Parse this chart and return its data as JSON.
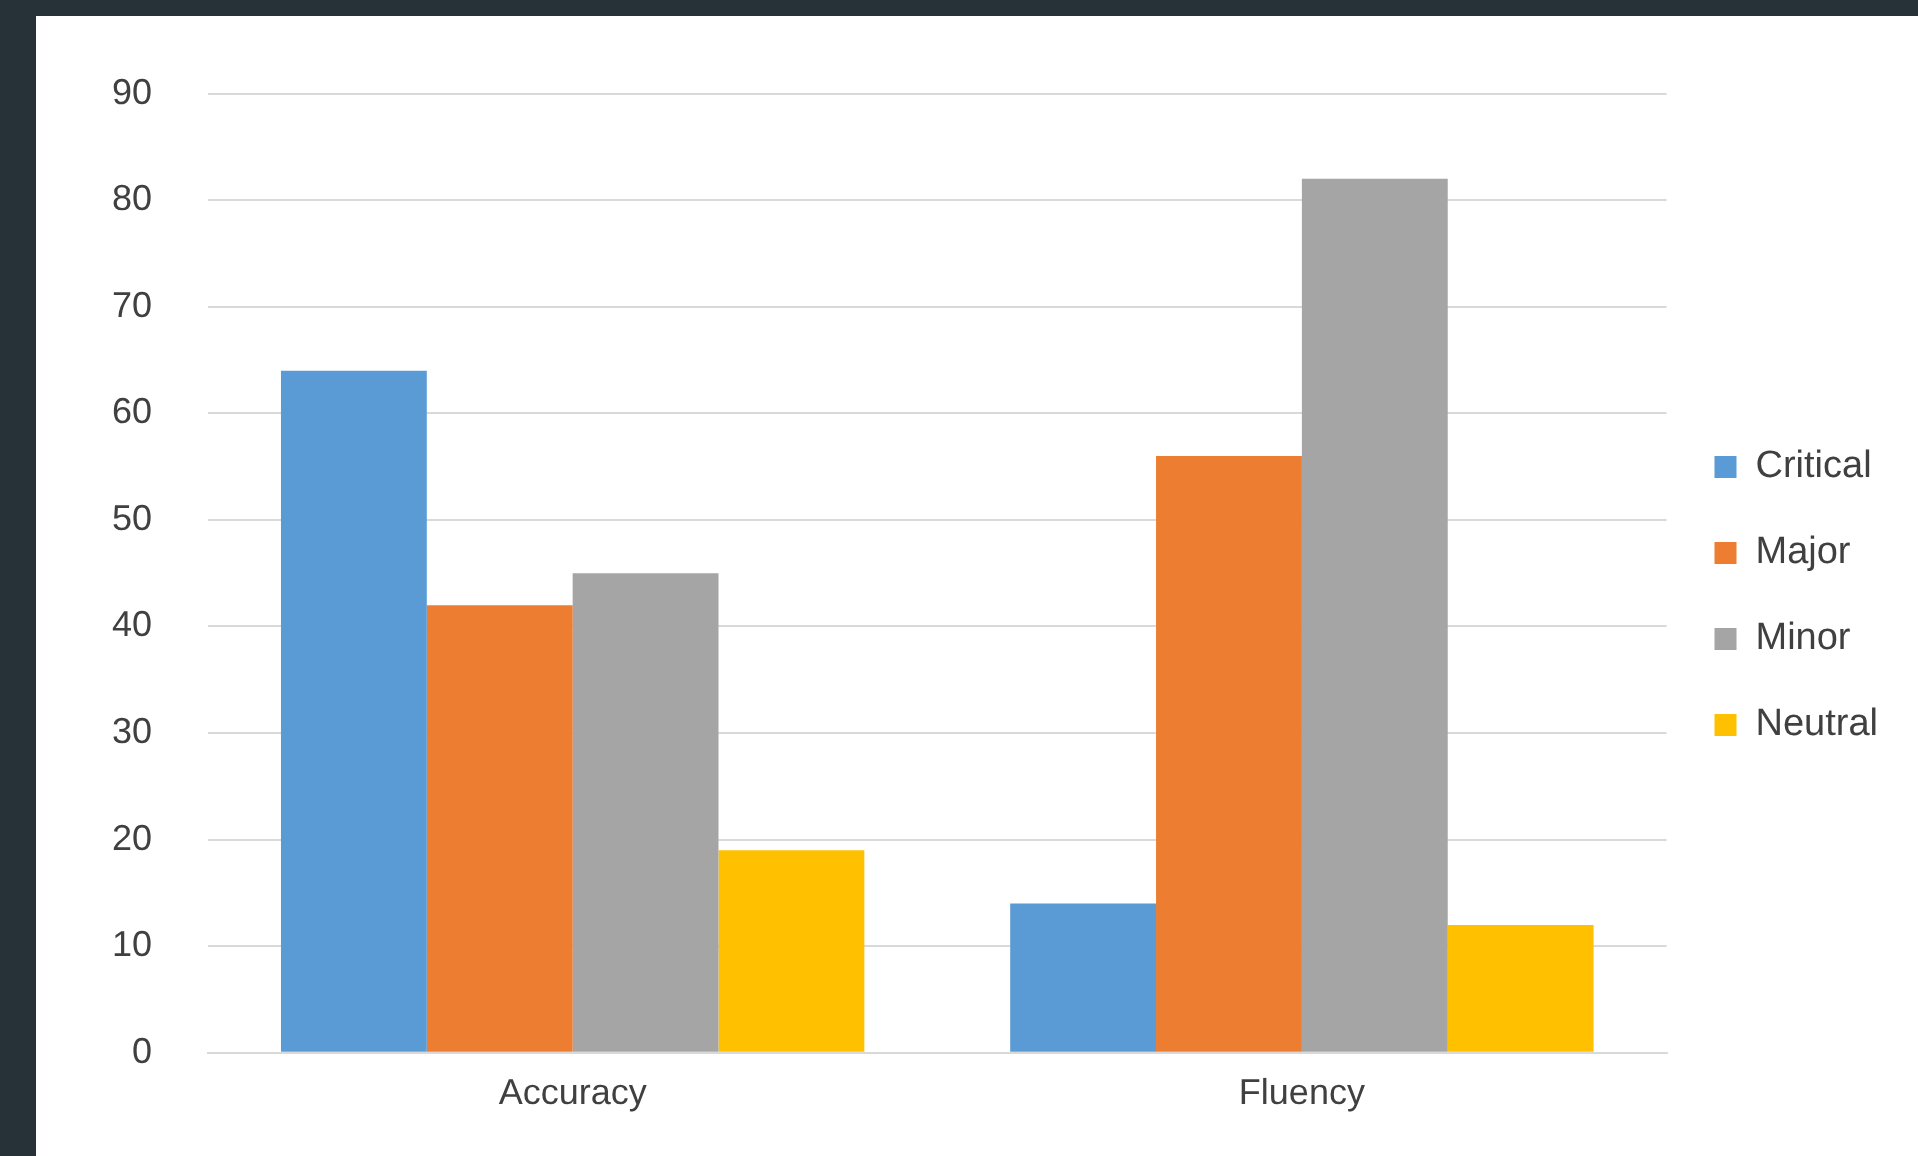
{
  "chart_data": {
    "type": "bar",
    "categories": [
      "Accuracy",
      "Fluency"
    ],
    "series": [
      {
        "name": "Critical",
        "color": "#5b9bd5",
        "values": [
          64,
          14
        ]
      },
      {
        "name": "Major",
        "color": "#ed7d31",
        "values": [
          42,
          56
        ]
      },
      {
        "name": "Minor",
        "color": "#a5a5a5",
        "values": [
          45,
          82
        ]
      },
      {
        "name": "Neutral",
        "color": "#ffc000",
        "values": [
          19,
          12
        ]
      }
    ],
    "ylim": [
      0,
      90
    ],
    "yticks": [
      0,
      10,
      20,
      30,
      40,
      50,
      60,
      70,
      80,
      90
    ],
    "grid": "y",
    "legend": "right"
  }
}
